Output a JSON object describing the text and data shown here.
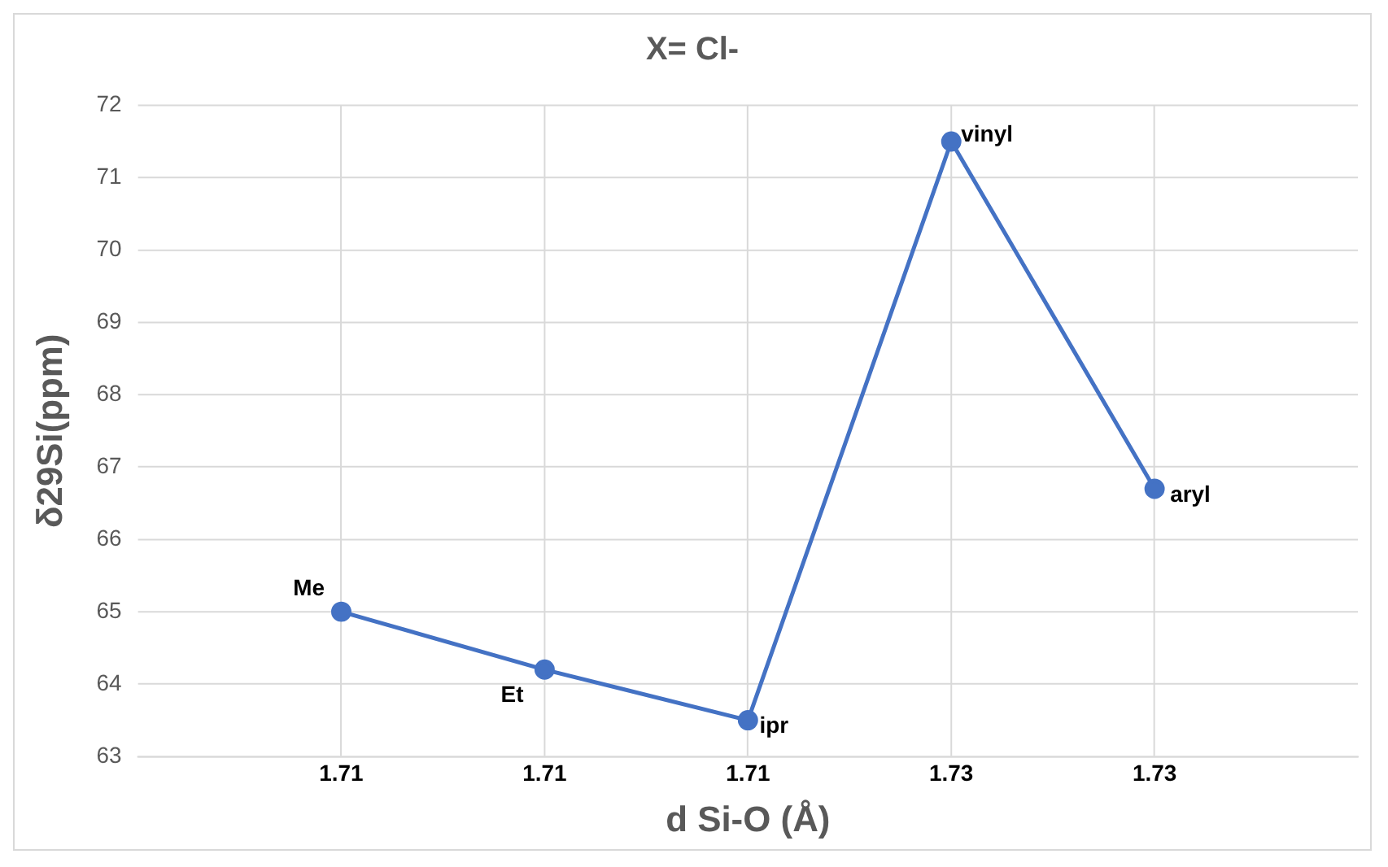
{
  "chart_data": {
    "type": "line",
    "title": "X= Cl-",
    "xlabel": "d Si-O (Å)",
    "ylabel": "δ29Si(ppm)",
    "categories": [
      "1.71",
      "1.71",
      "1.71",
      "1.73",
      "1.73"
    ],
    "series": [
      {
        "color": "#4472c4",
        "values": [
          65.0,
          64.2,
          63.5,
          71.5,
          66.7
        ],
        "value_labels": [
          "Me",
          "Et",
          "ipr",
          "vinyl",
          "aryl"
        ]
      }
    ],
    "ylim": [
      63,
      72
    ],
    "yticks": [
      63,
      64,
      65,
      66,
      67,
      68,
      69,
      70,
      71,
      72
    ],
    "grid": true,
    "legend": false,
    "marker": "circle",
    "line_style": "solid"
  }
}
